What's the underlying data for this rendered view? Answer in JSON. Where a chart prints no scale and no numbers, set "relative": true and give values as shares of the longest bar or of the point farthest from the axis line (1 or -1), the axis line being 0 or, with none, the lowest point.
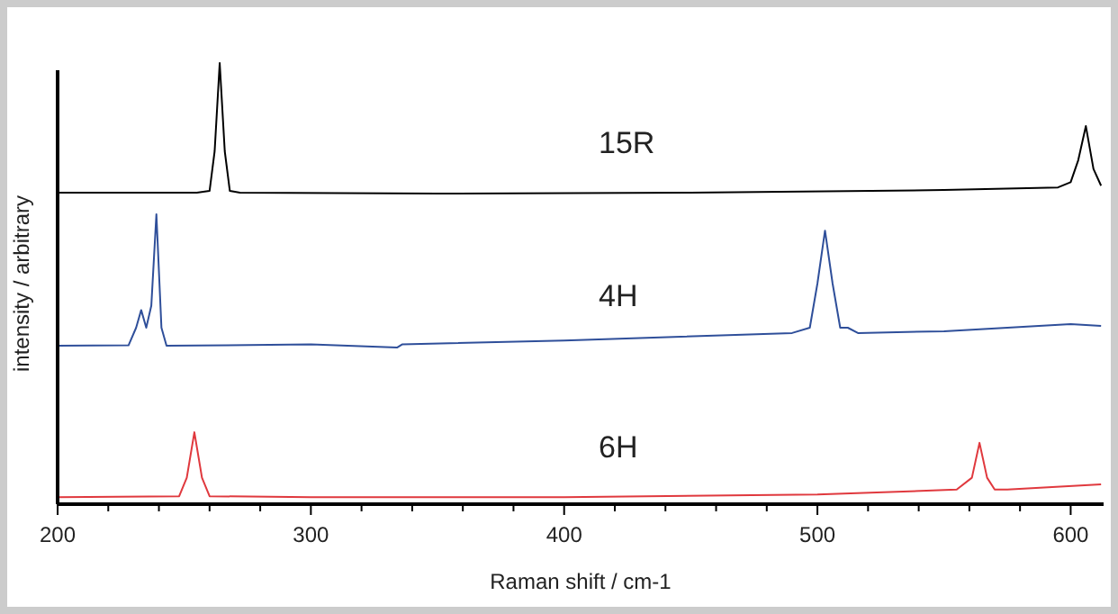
{
  "chart_data": {
    "type": "line",
    "xlabel": "Raman shift / cm-1",
    "ylabel": "intensity / arbitrary",
    "relative": true,
    "xlim": [
      200,
      613
    ],
    "xticks": [
      200,
      {
        "value": 220,
        "label": null
      },
      {
        "value": 240,
        "label": null
      },
      {
        "value": 260,
        "label": null
      },
      {
        "value": 280,
        "label": null
      },
      300,
      {
        "value": 320,
        "label": null
      },
      {
        "value": 340,
        "label": null
      },
      {
        "value": 360,
        "label": null
      },
      {
        "value": 380,
        "label": null
      },
      400,
      {
        "value": 420,
        "label": null
      },
      {
        "value": 440,
        "label": null
      },
      {
        "value": 460,
        "label": null
      },
      {
        "value": 480,
        "label": null
      },
      500,
      {
        "value": 520,
        "label": null
      },
      {
        "value": 540,
        "label": null
      },
      {
        "value": 560,
        "label": null
      },
      {
        "value": 580,
        "label": null
      },
      600
    ],
    "series": [
      {
        "name": "15R",
        "color": "#000000",
        "x": [
          200,
          255,
          260,
          262,
          264,
          266,
          268,
          272,
          350,
          450,
          550,
          595,
          600,
          603,
          606,
          609,
          612
        ],
        "values": [
          0.706,
          0.706,
          0.71,
          0.8,
          1.0,
          0.8,
          0.71,
          0.706,
          0.704,
          0.706,
          0.712,
          0.718,
          0.73,
          0.78,
          0.857,
          0.76,
          0.722
        ]
      },
      {
        "name": "4H",
        "color": "#2f4f9a",
        "x": [
          200,
          228,
          231,
          233,
          235,
          237,
          239,
          241,
          243,
          300,
          334,
          336,
          400,
          490,
          497,
          500,
          503,
          506,
          509,
          512,
          516,
          550,
          600,
          612
        ],
        "values": [
          0.359,
          0.36,
          0.4,
          0.44,
          0.4,
          0.45,
          0.657,
          0.4,
          0.359,
          0.362,
          0.355,
          0.362,
          0.371,
          0.388,
          0.4,
          0.5,
          0.62,
          0.5,
          0.4,
          0.4,
          0.388,
          0.392,
          0.408,
          0.404
        ]
      },
      {
        "name": "6H",
        "color": "#e0393e",
        "x": [
          200,
          248,
          251,
          254,
          257,
          260,
          300,
          400,
          500,
          555,
          561,
          564,
          567,
          570,
          575,
          612
        ],
        "values": [
          0.016,
          0.018,
          0.06,
          0.163,
          0.06,
          0.018,
          0.016,
          0.016,
          0.022,
          0.033,
          0.06,
          0.139,
          0.06,
          0.033,
          0.033,
          0.045
        ]
      }
    ],
    "grid": false,
    "line_style": "solid"
  }
}
